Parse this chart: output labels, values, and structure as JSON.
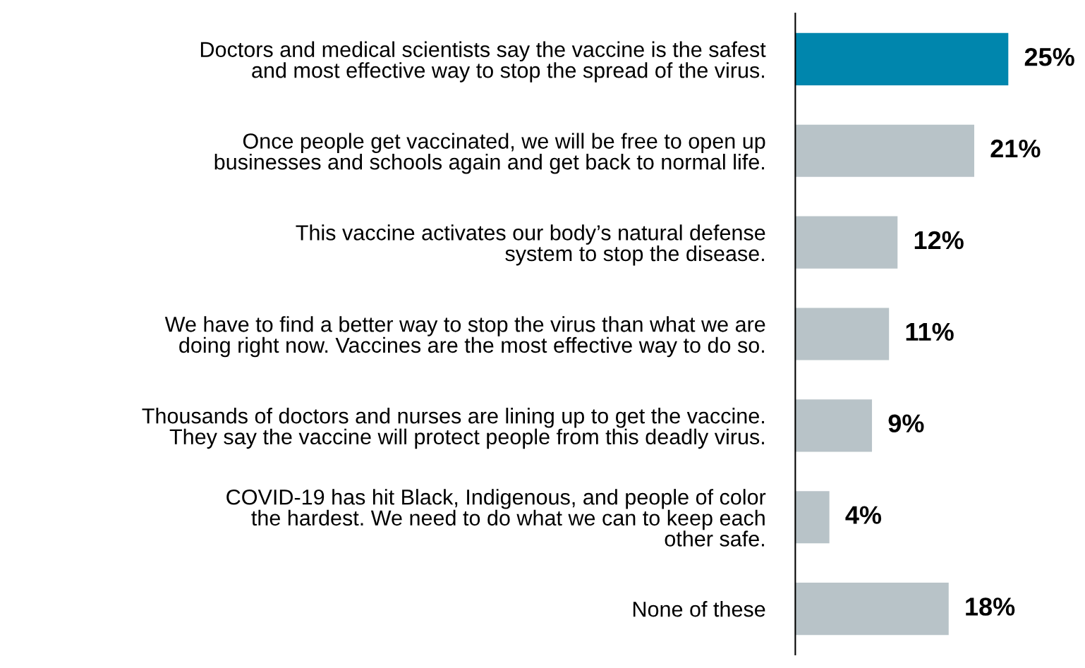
{
  "chart_data": {
    "type": "bar",
    "orientation": "horizontal",
    "categories": [
      "Doctors and medical scientists say the vaccine is the safest\nand most effective way to stop the spread of the virus.",
      "Once people get vaccinated, we will be free to open up\nbusinesses and schools again and get back to normal life.",
      "This vaccine activates our body’s natural defense\nsystem to stop the disease.",
      "We have to find a better way to stop the virus than what we are\ndoing right now. Vaccines are the most effective way to do so.",
      "Thousands of doctors and nurses are lining up to get the vaccine.\nThey say the vaccine will protect people from this deadly virus.",
      "COVID-19 has hit Black, Indigenous, and people of color\nthe hardest. We need to do what we can to keep each\nother safe.",
      "None of these"
    ],
    "values": [
      25,
      21,
      12,
      11,
      9,
      4,
      18
    ],
    "colors": [
      "#0086ad",
      "#b8c3c8",
      "#b8c3c8",
      "#b8c3c8",
      "#b8c3c8",
      "#b8c3c8",
      "#b8c3c8"
    ],
    "value_labels": [
      "25%",
      "21%",
      "12%",
      "11%",
      "9%",
      "4%",
      "18%"
    ],
    "grid": false,
    "legend": false
  }
}
